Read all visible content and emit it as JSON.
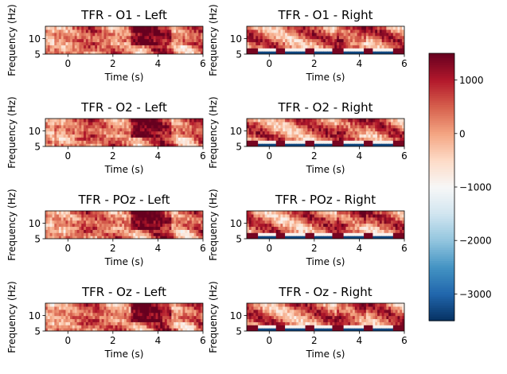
{
  "chart_data": {
    "type": "heatmap",
    "layout": {
      "rows": 4,
      "cols": 2
    },
    "xlabel": "Time (s)",
    "ylabel": "Frequency (Hz)",
    "xlim": [
      -1,
      6
    ],
    "ylim": [
      5,
      14
    ],
    "xticks": [
      0,
      2,
      4,
      6
    ],
    "yticks": [
      5,
      10
    ],
    "panels": [
      {
        "title": "TFR - O1 - Left",
        "pattern": "left",
        "seed": 11
      },
      {
        "title": "TFR - O1 - Right",
        "pattern": "right",
        "seed": 12
      },
      {
        "title": "TFR - O2 - Left",
        "pattern": "left",
        "seed": 21
      },
      {
        "title": "TFR - O2 - Right",
        "pattern": "right",
        "seed": 22
      },
      {
        "title": "TFR - POz - Left",
        "pattern": "left",
        "seed": 31
      },
      {
        "title": "TFR - POz - Right",
        "pattern": "right",
        "seed": 32
      },
      {
        "title": "TFR - Oz - Left",
        "pattern": "left",
        "seed": 41
      },
      {
        "title": "TFR - Oz - Right",
        "pattern": "right",
        "seed": 42
      }
    ],
    "colorbar": {
      "colormap": "RdBu_r",
      "vmin": -3500,
      "vmax": 1500,
      "ticks": [
        1000,
        0,
        -1000,
        -2000,
        -3000
      ]
    }
  }
}
